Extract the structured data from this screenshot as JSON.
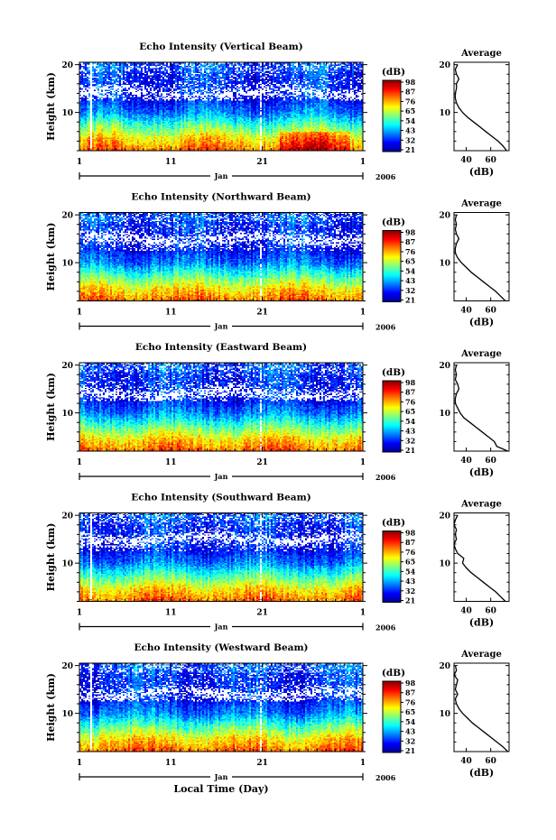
{
  "colors": {
    "jet": [
      "#00008f",
      "#0000ff",
      "#0080ff",
      "#00ffff",
      "#80ff80",
      "#ffff00",
      "#ff8000",
      "#ff0000",
      "#800000"
    ]
  },
  "shared": {
    "ylabel": "Height (km)",
    "x_ticks": [
      "1",
      "11",
      "21",
      "1"
    ],
    "month_label": "Jan",
    "year_label": "2006",
    "xlabel_bottom": "Local Time (Day)",
    "colorbar_unit": "(dB)",
    "colorbar_ticks": [
      "98",
      "87",
      "76",
      "65",
      "54",
      "43",
      "32",
      "21"
    ],
    "avg_title": "Average",
    "avg_xlabel": "(dB)",
    "avg_x_ticks": [
      "40",
      "60"
    ],
    "y_ticks": [
      "20",
      "10"
    ]
  },
  "chart_data": [
    {
      "type": "heatmap",
      "title": "Echo Intensity (Vertical Beam)",
      "ylabel": "Height (km)",
      "x_range_days": [
        1,
        32
      ],
      "ylim_km": [
        2,
        20.5
      ],
      "color_range_db": [
        21,
        98
      ],
      "profile": {
        "type": "line",
        "title": "Average",
        "xlabel": "(dB)",
        "xlim": [
          30,
          75
        ],
        "height_km": [
          2,
          3,
          4,
          5,
          6,
          7,
          8,
          9,
          10,
          11,
          12,
          13,
          14,
          15,
          16,
          17,
          18,
          19,
          20
        ],
        "db": [
          73,
          70,
          66,
          61,
          56,
          51,
          46,
          41,
          37,
          34,
          32,
          31,
          31,
          32,
          32,
          34,
          32,
          31,
          33
        ]
      }
    },
    {
      "type": "heatmap",
      "title": "Echo Intensity (Northward Beam)",
      "ylabel": "Height (km)",
      "x_range_days": [
        1,
        32
      ],
      "ylim_km": [
        2,
        20.5
      ],
      "color_range_db": [
        21,
        98
      ],
      "profile": {
        "type": "line",
        "title": "Average",
        "xlabel": "(dB)",
        "xlim": [
          30,
          75
        ],
        "height_km": [
          2,
          3,
          4,
          5,
          6,
          7,
          8,
          9,
          10,
          11,
          12,
          13,
          14,
          15,
          16,
          17,
          18,
          19,
          20
        ],
        "db": [
          72,
          68,
          64,
          59,
          54,
          49,
          44,
          40,
          36,
          33,
          31,
          31,
          32,
          34,
          32,
          31,
          32,
          31,
          32
        ]
      }
    },
    {
      "type": "heatmap",
      "title": "Echo Intensity (Eastward Beam)",
      "ylabel": "Height (km)",
      "x_range_days": [
        1,
        32
      ],
      "ylim_km": [
        2,
        20.5
      ],
      "color_range_db": [
        21,
        98
      ],
      "profile": {
        "type": "line",
        "title": "Average",
        "xlabel": "(dB)",
        "xlim": [
          30,
          75
        ],
        "height_km": [
          2,
          3,
          4,
          5,
          6,
          7,
          8,
          9,
          10,
          11,
          12,
          13,
          14,
          15,
          16,
          17,
          18,
          19,
          20
        ],
        "db": [
          74,
          65,
          63,
          58,
          53,
          48,
          43,
          38,
          35,
          33,
          31,
          31,
          32,
          34,
          33,
          31,
          32,
          31,
          32
        ]
      }
    },
    {
      "type": "heatmap",
      "title": "Echo Intensity (Southward Beam)",
      "ylabel": "Height (km)",
      "x_range_days": [
        1,
        32
      ],
      "ylim_km": [
        2,
        20.5
      ],
      "color_range_db": [
        21,
        98
      ],
      "profile": {
        "type": "line",
        "title": "Average",
        "xlabel": "(dB)",
        "xlim": [
          30,
          75
        ],
        "height_km": [
          2,
          3,
          4,
          5,
          6,
          7,
          8,
          9,
          10,
          11,
          12,
          13,
          14,
          15,
          16,
          17,
          18,
          19,
          20
        ],
        "db": [
          72,
          68,
          64,
          59,
          54,
          49,
          44,
          40,
          37,
          38,
          33,
          31,
          30,
          32,
          31,
          32,
          30,
          31,
          33
        ]
      }
    },
    {
      "type": "heatmap",
      "title": "Echo Intensity (Westward Beam)",
      "ylabel": "Height (km)",
      "x_range_days": [
        1,
        32
      ],
      "ylim_km": [
        2,
        20.5
      ],
      "color_range_db": [
        21,
        98
      ],
      "profile": {
        "type": "line",
        "title": "Average",
        "xlabel": "(dB)",
        "xlim": [
          30,
          75
        ],
        "height_km": [
          2,
          3,
          4,
          5,
          6,
          7,
          8,
          9,
          10,
          11,
          12,
          13,
          14,
          15,
          16,
          17,
          18,
          19,
          20
        ],
        "db": [
          74,
          70,
          65,
          60,
          55,
          50,
          45,
          41,
          37,
          34,
          32,
          31,
          33,
          31,
          32,
          33,
          30,
          32,
          31
        ]
      }
    }
  ]
}
